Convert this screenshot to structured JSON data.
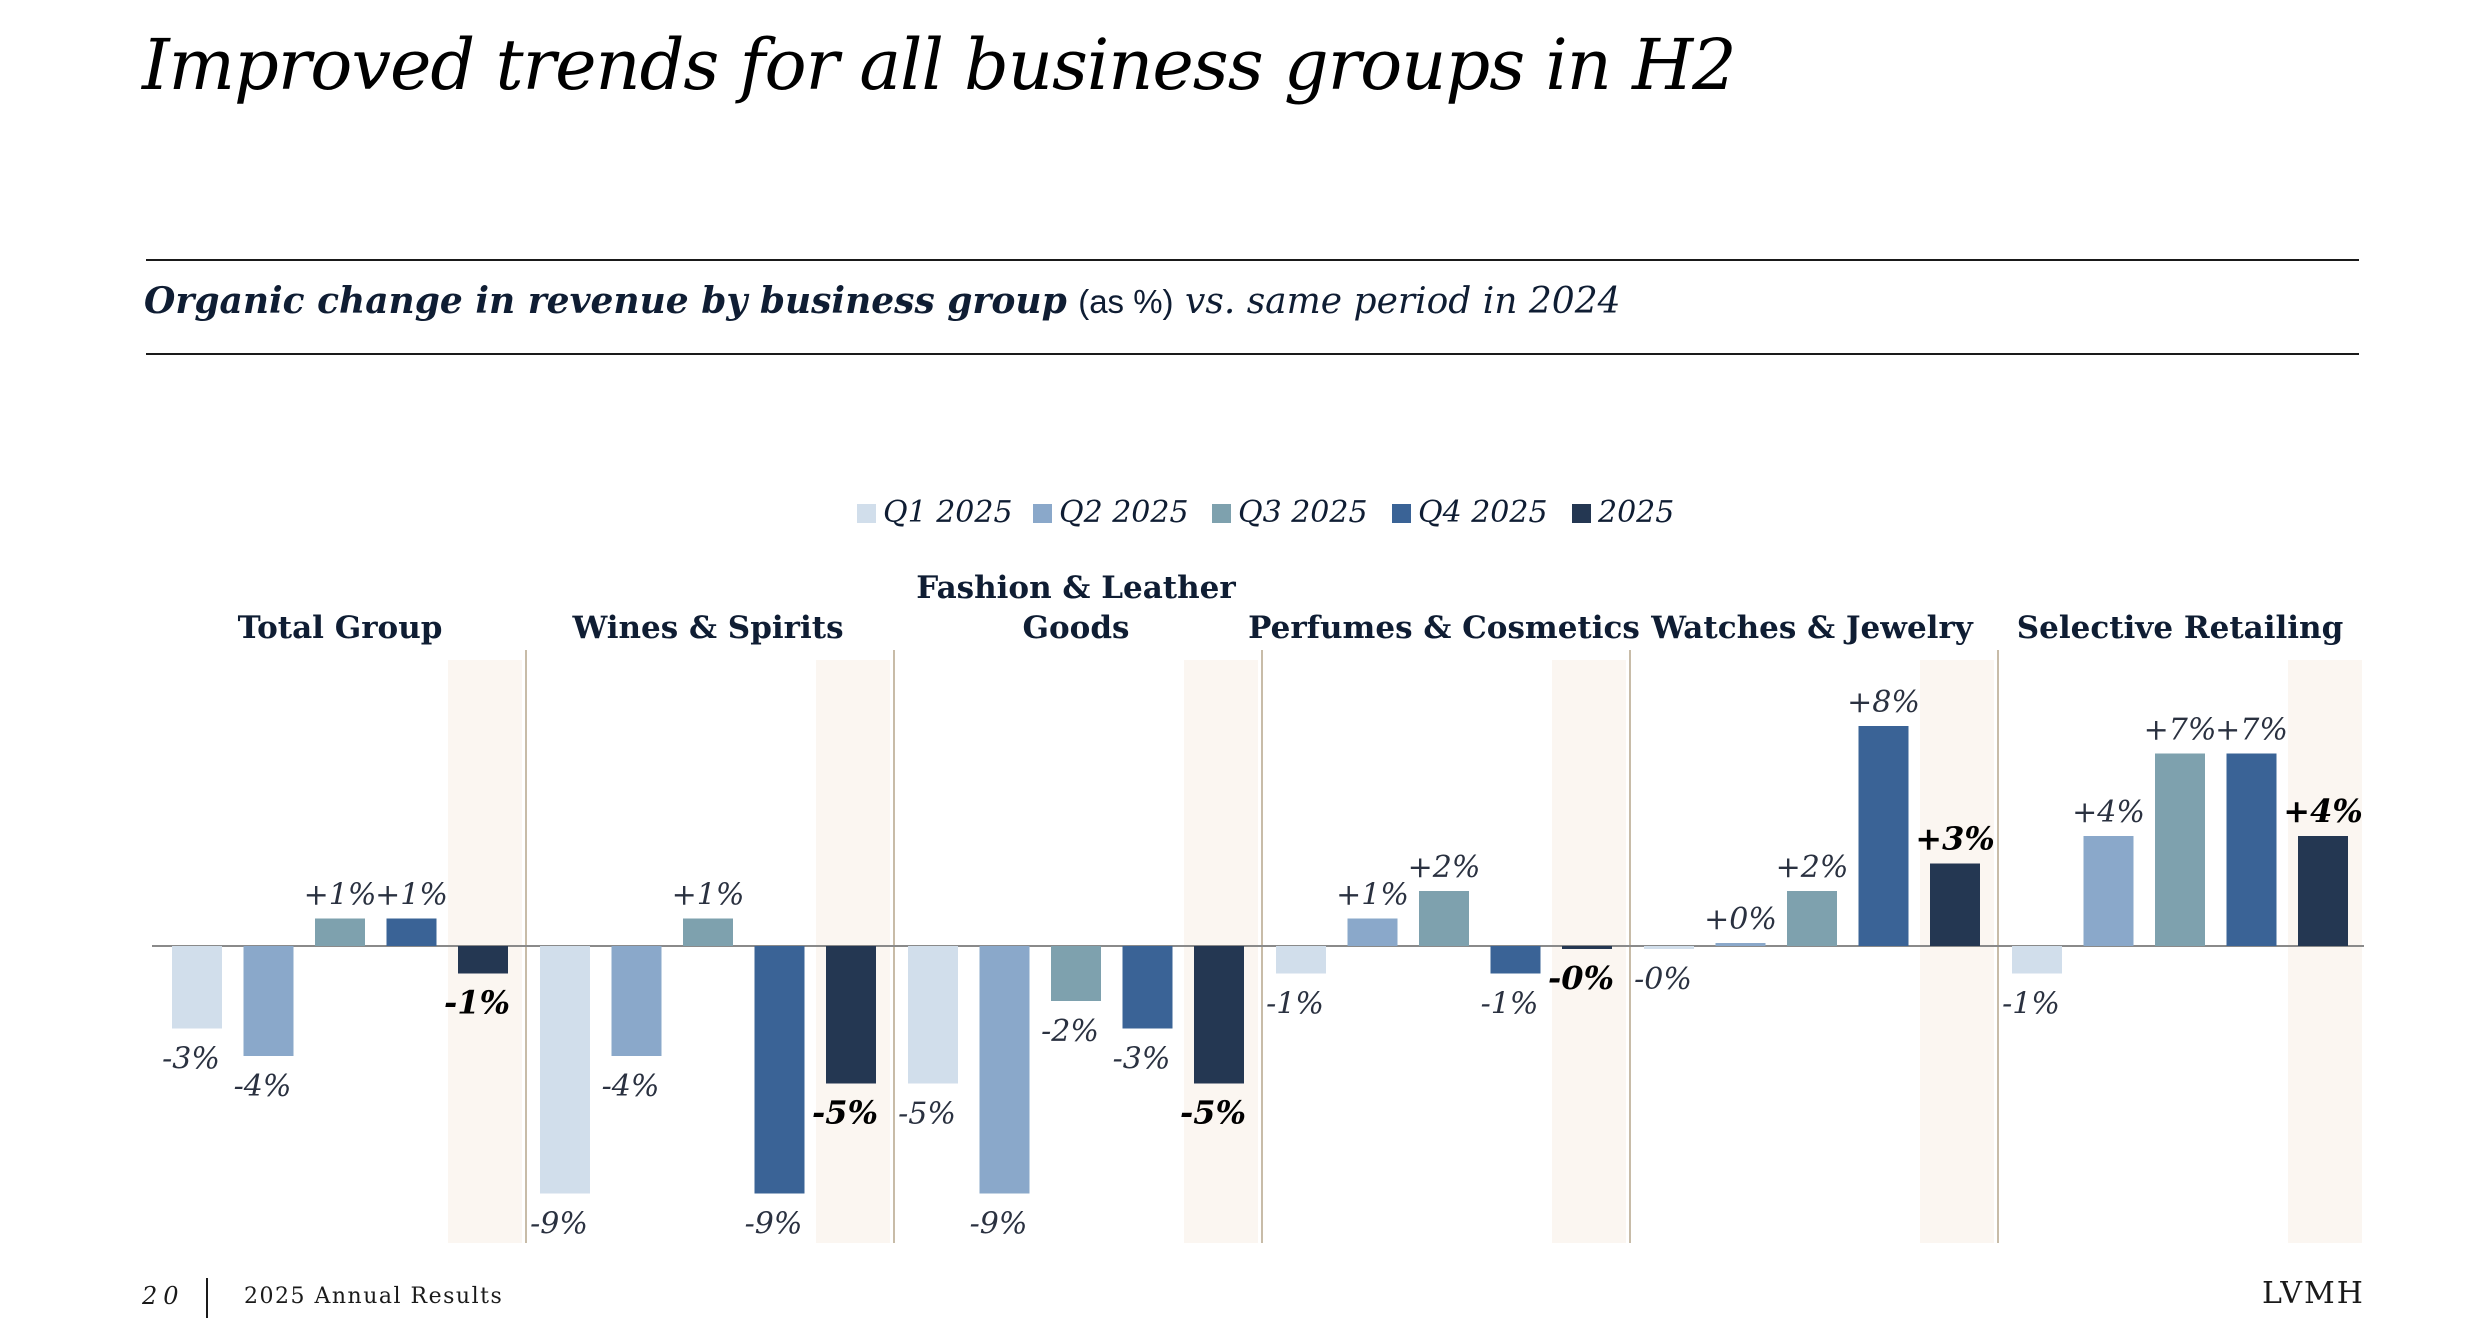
{
  "header": {
    "title": "Improved trends for all business groups in H2",
    "subtitle_bold": "Organic change in revenue by business group",
    "subtitle_unit": "(as %)",
    "subtitle_vs": "vs. same period in 2024"
  },
  "footer": {
    "page_number": "20",
    "report_name": "2025 Annual Results",
    "brand": "LVMH"
  },
  "colors": {
    "Q1 2025": "#d1deeb",
    "Q2 2025": "#8aa8ca",
    "Q3 2025": "#7ea1ae",
    "Q4 2025": "#3a6396",
    "2025": "#243752",
    "highlight_band": "#fbf6f1",
    "divider": "#c8bca8",
    "baseline": "#8a8a8a"
  },
  "chart_data": {
    "type": "bar",
    "title": "",
    "ylabel": "",
    "ylim": [
      -10,
      9
    ],
    "legend": {
      "placement": "top-center"
    },
    "series_names": [
      "Q1 2025",
      "Q2 2025",
      "Q3 2025",
      "Q4 2025",
      "2025"
    ],
    "highlighted_series": "2025",
    "groups": [
      {
        "name": "Total Group",
        "values": [
          -3,
          -4,
          1,
          1,
          -1
        ],
        "labels": [
          "-3%",
          "-4%",
          "+1%",
          "+1%",
          "-1%"
        ]
      },
      {
        "name": "Wines & Spirits",
        "values": [
          -9,
          -4,
          1,
          -9,
          -5
        ],
        "labels": [
          "-9%",
          "-4%",
          "+1%",
          "-9%",
          "-5%"
        ]
      },
      {
        "name": "Fashion & Leather Goods",
        "values": [
          -5,
          -9,
          -2,
          -3,
          -5
        ],
        "labels": [
          "-5%",
          "-9%",
          "-2%",
          "-3%",
          "-5%"
        ]
      },
      {
        "name": "Perfumes & Cosmetics",
        "values": [
          -1,
          1,
          2,
          -1,
          -0.1
        ],
        "labels": [
          "-1%",
          "+1%",
          "+2%",
          "-1%",
          "-0%"
        ]
      },
      {
        "name": "Watches & Jewelry",
        "values": [
          -0.1,
          0.1,
          2,
          8,
          3
        ],
        "labels": [
          "-0%",
          "+0%",
          "+2%",
          "+8%",
          "+3%"
        ]
      },
      {
        "name": "Selective Retailing",
        "values": [
          -1,
          4,
          7,
          7,
          4
        ],
        "labels": [
          "-1%",
          "+4%",
          "+7%",
          "+7%",
          "+4%"
        ]
      }
    ]
  }
}
